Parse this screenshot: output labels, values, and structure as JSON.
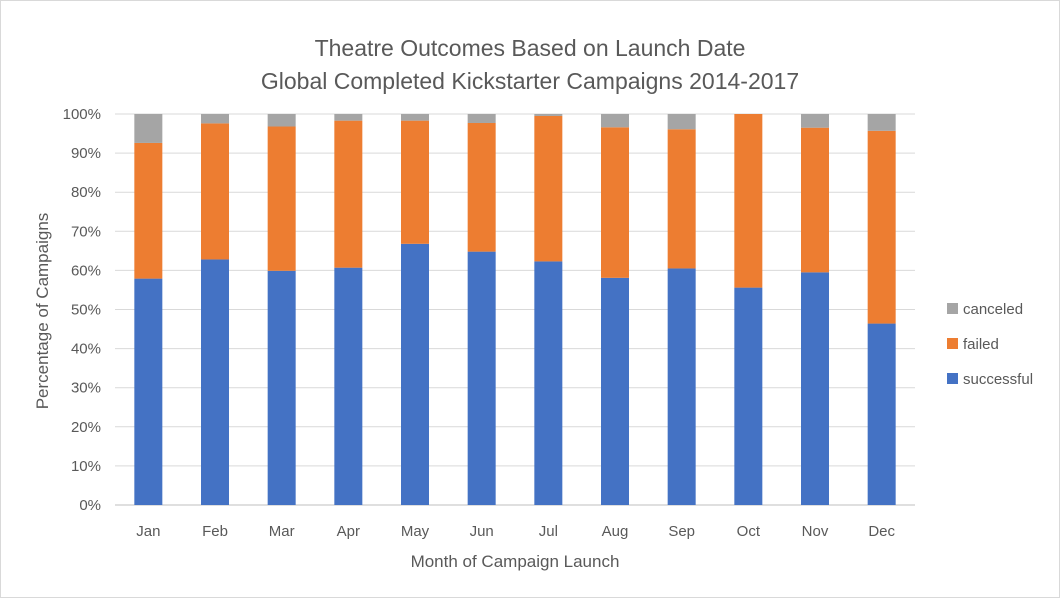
{
  "chart_data": {
    "type": "bar",
    "stacked": true,
    "title": "Theatre Outcomes Based on Launch Date",
    "subtitle": "Global Completed Kickstarter Campaigns 2014-2017",
    "xlabel": "Month of Campaign Launch",
    "ylabel": "Percentage of Campaigns",
    "ylim": [
      0,
      100
    ],
    "yticks": [
      "0%",
      "10%",
      "20%",
      "30%",
      "40%",
      "50%",
      "60%",
      "70%",
      "80%",
      "90%",
      "100%"
    ],
    "grid": true,
    "legend_position": "right",
    "categories": [
      "Jan",
      "Feb",
      "Mar",
      "Apr",
      "May",
      "Jun",
      "Jul",
      "Aug",
      "Sep",
      "Oct",
      "Nov",
      "Dec"
    ],
    "series": [
      {
        "name": "successful",
        "color": "#4472C4",
        "values": [
          57.9,
          62.8,
          59.9,
          60.7,
          66.8,
          64.8,
          62.3,
          58.1,
          60.5,
          55.6,
          59.5,
          46.4
        ]
      },
      {
        "name": "failed",
        "color": "#ED7D31",
        "values": [
          34.7,
          34.8,
          36.9,
          37.6,
          31.5,
          32.9,
          37.2,
          38.5,
          35.6,
          44.4,
          37.0,
          49.3
        ]
      },
      {
        "name": "canceled",
        "color": "#A5A5A5",
        "values": [
          7.4,
          2.4,
          3.2,
          1.7,
          1.7,
          2.3,
          0.5,
          3.4,
          3.9,
          0.0,
          3.5,
          4.3
        ]
      }
    ]
  }
}
